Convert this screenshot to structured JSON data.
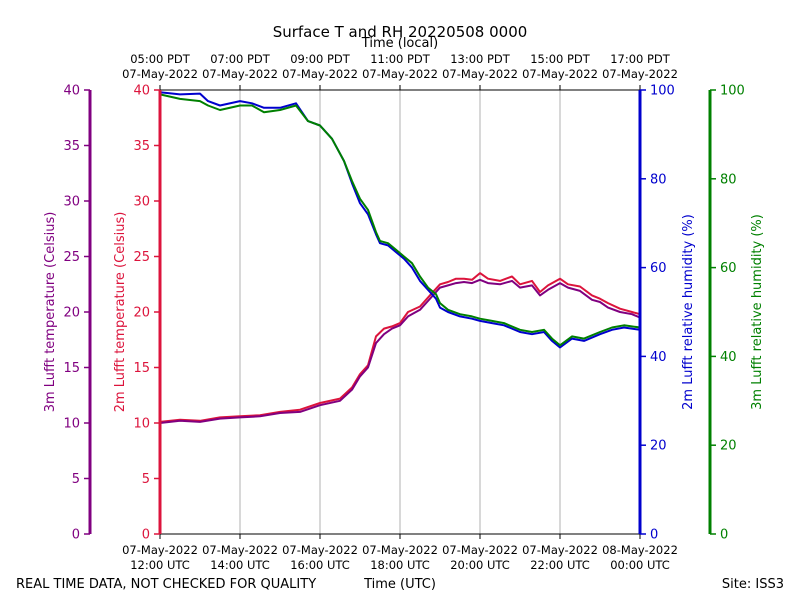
{
  "colors": {
    "temp3m": "#800080",
    "temp2m": "#dc143c",
    "rh2m": "#0000cd",
    "rh3m": "#008000",
    "grid": "#b0b0b0",
    "text": "#000000"
  },
  "labels": {
    "footer_left": "REAL TIME DATA, NOT CHECKED FOR QUALITY",
    "footer_right": "Site: ISS3"
  },
  "chart_data": {
    "type": "line",
    "title": "Surface T and RH 20220508 0000",
    "xlabel_bottom": "Time (UTC)",
    "xlabel_top": "Time (local)",
    "x_unit": "hours since 07-May-2022 12:00 UTC",
    "xlim": [
      0,
      12
    ],
    "bottom_ticks": [
      {
        "x": 0,
        "date": "07-May-2022",
        "time": "12:00 UTC"
      },
      {
        "x": 2,
        "date": "07-May-2022",
        "time": "14:00 UTC"
      },
      {
        "x": 4,
        "date": "07-May-2022",
        "time": "16:00 UTC"
      },
      {
        "x": 6,
        "date": "07-May-2022",
        "time": "18:00 UTC"
      },
      {
        "x": 8,
        "date": "07-May-2022",
        "time": "20:00 UTC"
      },
      {
        "x": 10,
        "date": "07-May-2022",
        "time": "22:00 UTC"
      },
      {
        "x": 12,
        "date": "08-May-2022",
        "time": "00:00 UTC"
      }
    ],
    "top_ticks": [
      {
        "x": 0,
        "time": "05:00 PDT",
        "date": "07-May-2022"
      },
      {
        "x": 2,
        "time": "07:00 PDT",
        "date": "07-May-2022"
      },
      {
        "x": 4,
        "time": "09:00 PDT",
        "date": "07-May-2022"
      },
      {
        "x": 6,
        "time": "11:00 PDT",
        "date": "07-May-2022"
      },
      {
        "x": 8,
        "time": "13:00 PDT",
        "date": "07-May-2022"
      },
      {
        "x": 10,
        "time": "15:00 PDT",
        "date": "07-May-2022"
      },
      {
        "x": 12,
        "time": "17:00 PDT",
        "date": "07-May-2022"
      }
    ],
    "axes": {
      "temp3m": {
        "label": "3m Lufft temperature (Celsius)",
        "ylim": [
          0,
          40
        ],
        "ticks": [
          "0",
          "5",
          "10",
          "15",
          "20",
          "25",
          "30",
          "35",
          "40"
        ]
      },
      "temp2m": {
        "label": "2m Lufft temperature (Celsius)",
        "ylim": [
          0,
          40
        ],
        "ticks": [
          "0",
          "5",
          "10",
          "15",
          "20",
          "25",
          "30",
          "35",
          "40"
        ]
      },
      "rh2m": {
        "label": "2m Lufft relative humidity (%)",
        "ylim": [
          0,
          100
        ],
        "ticks": [
          "0",
          "20",
          "40",
          "60",
          "80",
          "100"
        ]
      },
      "rh3m": {
        "label": "3m Lufft relative humidity (%)",
        "ylim": [
          0,
          100
        ],
        "ticks": [
          "0",
          "20",
          "40",
          "60",
          "80",
          "100"
        ]
      }
    },
    "series": [
      {
        "name": "2m Lufft temperature",
        "axis": "temp2m",
        "color": "#dc143c",
        "x": [
          0,
          0.5,
          1,
          1.5,
          2,
          2.5,
          3,
          3.5,
          4,
          4.5,
          4.8,
          5.0,
          5.2,
          5.4,
          5.6,
          5.8,
          6.0,
          6.2,
          6.5,
          6.8,
          7.0,
          7.2,
          7.4,
          7.6,
          7.8,
          8.0,
          8.2,
          8.5,
          8.8,
          9.0,
          9.3,
          9.5,
          9.7,
          10.0,
          10.2,
          10.5,
          10.8,
          11.0,
          11.2,
          11.5,
          11.8,
          12.0
        ],
        "y": [
          10.1,
          10.3,
          10.2,
          10.5,
          10.6,
          10.7,
          11.0,
          11.2,
          11.8,
          12.2,
          13.2,
          14.4,
          15.2,
          17.8,
          18.5,
          18.7,
          19.0,
          20.0,
          20.5,
          21.7,
          22.5,
          22.7,
          23.0,
          23.0,
          22.9,
          23.5,
          23.0,
          22.8,
          23.2,
          22.5,
          22.8,
          21.8,
          22.4,
          23.0,
          22.5,
          22.3,
          21.5,
          21.2,
          20.8,
          20.3,
          20.0,
          19.8
        ]
      },
      {
        "name": "3m Lufft temperature",
        "axis": "temp3m",
        "color": "#800080",
        "x": [
          0,
          0.5,
          1,
          1.5,
          2,
          2.5,
          3,
          3.5,
          4,
          4.5,
          4.8,
          5.0,
          5.2,
          5.4,
          5.6,
          5.8,
          6.0,
          6.2,
          6.5,
          6.8,
          7.0,
          7.2,
          7.4,
          7.6,
          7.8,
          8.0,
          8.2,
          8.5,
          8.8,
          9.0,
          9.3,
          9.5,
          9.7,
          10.0,
          10.2,
          10.5,
          10.8,
          11.0,
          11.2,
          11.5,
          11.8,
          12.0
        ],
        "y": [
          10.0,
          10.2,
          10.1,
          10.4,
          10.5,
          10.6,
          10.9,
          11.0,
          11.6,
          12.0,
          13.0,
          14.2,
          15.0,
          17.2,
          18.0,
          18.5,
          18.8,
          19.6,
          20.2,
          21.4,
          22.2,
          22.4,
          22.6,
          22.7,
          22.6,
          22.9,
          22.6,
          22.5,
          22.8,
          22.2,
          22.4,
          21.5,
          22.0,
          22.6,
          22.2,
          21.9,
          21.1,
          20.9,
          20.4,
          20.0,
          19.8,
          19.5
        ]
      },
      {
        "name": "2m Lufft relative humidity",
        "axis": "rh2m",
        "color": "#0000cd",
        "x": [
          0,
          0.5,
          1,
          1.2,
          1.5,
          2,
          2.3,
          2.6,
          3,
          3.4,
          3.7,
          4,
          4.3,
          4.6,
          4.8,
          5.0,
          5.2,
          5.4,
          5.5,
          5.7,
          5.9,
          6.1,
          6.3,
          6.5,
          6.7,
          6.9,
          7.0,
          7.2,
          7.5,
          7.8,
          8.0,
          8.3,
          8.6,
          9.0,
          9.3,
          9.6,
          9.8,
          10.0,
          10.3,
          10.6,
          11.0,
          11.3,
          11.6,
          12.0
        ],
        "y": [
          99.5,
          99.0,
          99.2,
          97.5,
          96.5,
          97.5,
          97.0,
          96.0,
          96.0,
          97.0,
          93.0,
          92.0,
          89.0,
          84.0,
          79.0,
          74.5,
          72.0,
          67.5,
          65.5,
          65.0,
          63.5,
          62.0,
          60.0,
          57.0,
          55.0,
          53.0,
          51.0,
          50.0,
          49.0,
          48.5,
          48.0,
          47.5,
          47.0,
          45.5,
          45.0,
          45.5,
          43.5,
          42.0,
          44.0,
          43.5,
          45.0,
          46.0,
          46.5,
          46.0
        ]
      },
      {
        "name": "3m Lufft relative humidity",
        "axis": "rh3m",
        "color": "#008000",
        "x": [
          0,
          0.5,
          1,
          1.2,
          1.5,
          2,
          2.3,
          2.6,
          3,
          3.4,
          3.7,
          4,
          4.3,
          4.6,
          4.8,
          5.0,
          5.2,
          5.4,
          5.5,
          5.7,
          5.9,
          6.1,
          6.3,
          6.5,
          6.7,
          6.9,
          7.0,
          7.2,
          7.5,
          7.8,
          8.0,
          8.3,
          8.6,
          9.0,
          9.3,
          9.6,
          9.8,
          10.0,
          10.3,
          10.6,
          11.0,
          11.3,
          11.6,
          12.0
        ],
        "y": [
          99.0,
          98.0,
          97.5,
          96.5,
          95.5,
          96.5,
          96.5,
          95.0,
          95.5,
          96.5,
          93.0,
          92.0,
          89.0,
          84.0,
          79.5,
          75.5,
          73.0,
          68.0,
          66.0,
          65.5,
          64.0,
          62.5,
          61.0,
          58.0,
          55.5,
          54.0,
          52.0,
          50.5,
          49.5,
          49.0,
          48.5,
          48.0,
          47.5,
          46.0,
          45.5,
          46.0,
          44.0,
          42.5,
          44.5,
          44.0,
          45.5,
          46.5,
          47.0,
          46.5
        ]
      }
    ]
  }
}
